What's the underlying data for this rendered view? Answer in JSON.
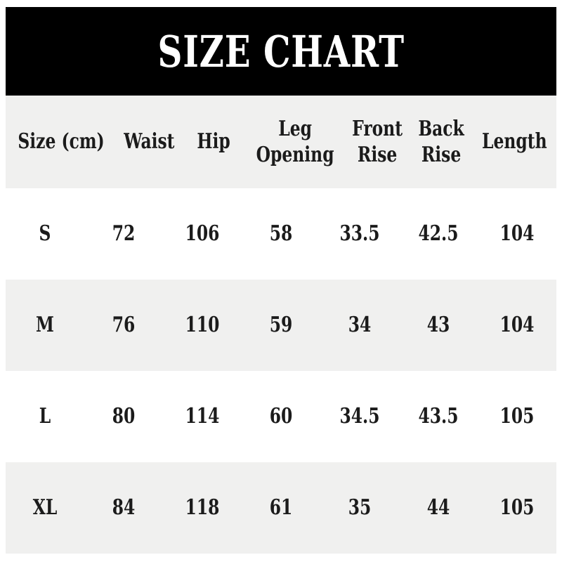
{
  "banner": {
    "title": "SIZE CHART"
  },
  "colors": {
    "banner_bg": "#000000",
    "banner_text": "#ffffff",
    "row_alt_bg": "#f0f0ef",
    "row_bg": "#ffffff",
    "text": "#1b1b1b",
    "page_bg": "#ffffff"
  },
  "table": {
    "unit_note": "cm",
    "headers": [
      [
        "Size (cm)"
      ],
      [
        "Waist"
      ],
      [
        "Hip"
      ],
      [
        "Leg",
        "Opening"
      ],
      [
        "Front",
        "Rise"
      ],
      [
        "Back",
        "Rise"
      ],
      [
        "Length"
      ]
    ],
    "rows": [
      {
        "size": "S",
        "values": [
          "72",
          "106",
          "58",
          "33.5",
          "42.5",
          "104"
        ]
      },
      {
        "size": "M",
        "values": [
          "76",
          "110",
          "59",
          "34",
          "43",
          "104"
        ]
      },
      {
        "size": "L",
        "values": [
          "80",
          "114",
          "60",
          "34.5",
          "43.5",
          "105"
        ]
      },
      {
        "size": "XL",
        "values": [
          "84",
          "118",
          "61",
          "35",
          "44",
          "105"
        ]
      }
    ]
  }
}
